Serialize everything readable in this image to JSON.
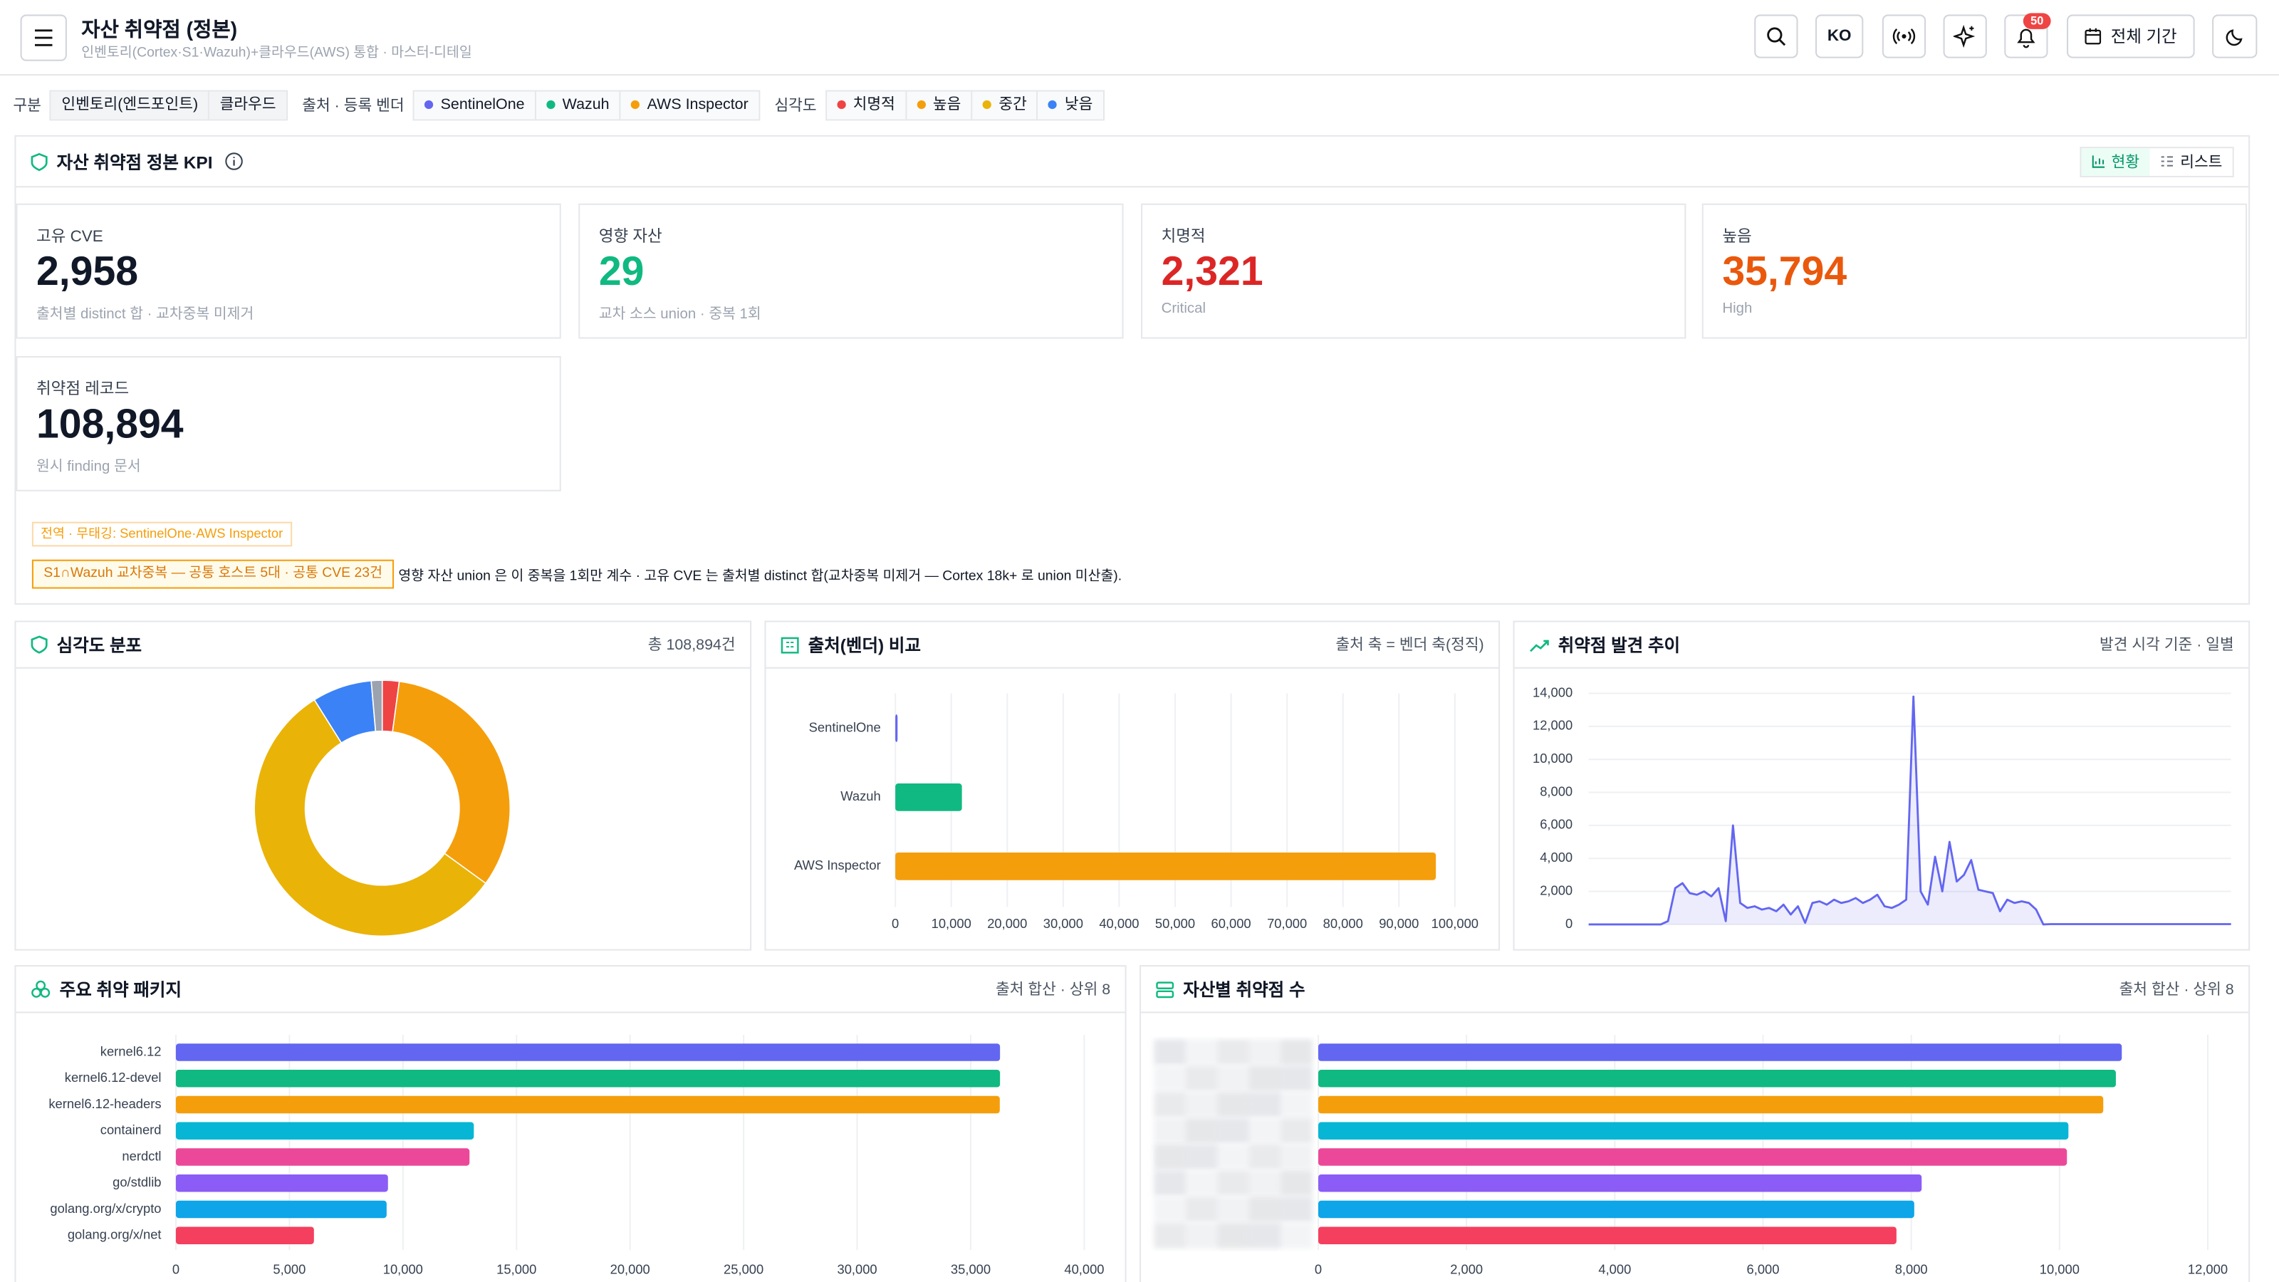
{
  "header": {
    "title": "자산 취약점 (정본)",
    "subtitle": "인벤토리(Cortex·S1·Wazuh)+클라우드(AWS) 통합 · 마스터-디테일",
    "lang": "KO",
    "badge": "50",
    "period": "전체 기간"
  },
  "filters": {
    "group_label": "구분",
    "groups": [
      "인벤토리(엔드포인트)",
      "클라우드"
    ],
    "vendor_label": "출처 · 등록 벤더",
    "vendors": [
      {
        "name": "SentinelOne",
        "color": "#6366f1"
      },
      {
        "name": "Wazuh",
        "color": "#10b981"
      },
      {
        "name": "AWS Inspector",
        "color": "#f59e0b"
      }
    ],
    "severity_label": "심각도",
    "severities": [
      {
        "name": "치명적",
        "color": "#ef4444"
      },
      {
        "name": "높음",
        "color": "#f59e0b"
      },
      {
        "name": "중간",
        "color": "#eab308"
      },
      {
        "name": "낮음",
        "color": "#3b82f6"
      }
    ]
  },
  "kpi": {
    "title": "자산 취약점 정본 KPI",
    "tabs": [
      "현황",
      "리스트"
    ],
    "cards": [
      {
        "label": "고유 CVE",
        "value": "2,958",
        "note": "출처별 distinct 합 · 교차중복 미제거",
        "color": "#111827"
      },
      {
        "label": "영향 자산",
        "value": "29",
        "note": "교차 소스 union · 중복 1회",
        "color": "#10b981"
      },
      {
        "label": "치명적",
        "value": "2,321",
        "note": "Critical",
        "color": "#dc2626"
      },
      {
        "label": "높음",
        "value": "35,794",
        "note": "High",
        "color": "#ea580c"
      },
      {
        "label": "취약점 레코드",
        "value": "108,894",
        "note": "원시 finding 문서",
        "color": "#111827"
      }
    ],
    "tag": "전역 · 무태깅: SentinelOne·AWS Inspector",
    "overlap": "S1∩Wazuh 교차중복 — 공통 호스트 5대 · 공통 CVE 23건",
    "note": "영향 자산 union 은 이 중복을 1회만 계수 · 고유 CVE 는 출처별 distinct 합(교차중복 미제거 — Cortex 18k+ 로 union 미산출)."
  },
  "severity_chart": {
    "type": "donut",
    "title": "심각도 분포",
    "summary": "총 108,894건",
    "values": [
      2321,
      35794,
      61079,
      8200,
      1500
    ],
    "colors": [
      "#ef4444",
      "#f59e0b",
      "#eab308",
      "#3b82f6",
      "#9ca3af"
    ]
  },
  "vendor_chart": {
    "type": "hbar",
    "title": "출처(벤더) 비교",
    "summary": "출처 축 = 벤더 축(정직)",
    "categories": [
      "SentinelOne",
      "Wazuh",
      "AWS Inspector"
    ],
    "values": [
      400,
      11900,
      96600
    ],
    "colors": [
      "#6366f1",
      "#10b981",
      "#f59e0b"
    ],
    "xlim": [
      0,
      100000
    ],
    "xticks": [
      0,
      {
        "value": 10000,
        "label": "10,000"
      },
      {
        "value": 20000,
        "label": "20,000"
      },
      {
        "value": 30000,
        "label": "30,000"
      },
      {
        "value": 40000,
        "label": "40,000"
      },
      {
        "value": 50000,
        "label": "50,000"
      },
      {
        "value": 60000,
        "label": "60,000"
      },
      {
        "value": 70000,
        "label": "70,000"
      },
      {
        "value": 80000,
        "label": "80,000"
      },
      {
        "value": 90000,
        "label": "90,000"
      },
      {
        "value": 100000,
        "label": "100,000"
      }
    ]
  },
  "trend_chart": {
    "type": "line",
    "title": "취약점 발견 추이",
    "summary": "발견 시각 기준 · 일별",
    "color": "#6366f1",
    "values": [
      0,
      0,
      0,
      0,
      0,
      0,
      0,
      0,
      0,
      0,
      0,
      200,
      2200,
      2500,
      1900,
      1800,
      2000,
      1700,
      2200,
      200,
      6000,
      1300,
      1000,
      1100,
      900,
      1000,
      800,
      1200,
      600,
      1100,
      100,
      1300,
      1400,
      1200,
      1500,
      1300,
      1400,
      1600,
      1300,
      1500,
      1800,
      1100,
      1000,
      1200,
      1500,
      13800,
      2000,
      1200,
      4100,
      2000,
      5000,
      2600,
      3000,
      3900,
      2100,
      2000,
      1900,
      800,
      1500,
      1300,
      1400,
      1300,
      900,
      0,
      20,
      20,
      20,
      20,
      20,
      20,
      20,
      20,
      20,
      20,
      20,
      20,
      20,
      20,
      20,
      20,
      20,
      20,
      20,
      20,
      20,
      20,
      20,
      20,
      20,
      20
    ],
    "ylim": [
      0,
      14000
    ],
    "yticks": [
      0,
      {
        "value": 2000,
        "label": "2,000"
      },
      {
        "value": 4000,
        "label": "4,000"
      },
      {
        "value": 6000,
        "label": "6,000"
      },
      {
        "value": 8000,
        "label": "8,000"
      },
      {
        "value": 10000,
        "label": "10,000"
      },
      {
        "value": 12000,
        "label": "12,000"
      },
      {
        "value": 14000,
        "label": "14,000"
      }
    ]
  },
  "package_chart": {
    "type": "hbar",
    "title": "주요 취약 패키지",
    "summary": "출처 합산 · 상위 8",
    "categories": [
      "kernel6.12",
      "kernel6.12-devel",
      "kernel6.12-headers",
      "containerd",
      "nerdctl",
      "go/stdlib",
      "golang.org/x/crypto",
      "golang.org/x/net"
    ],
    "values": [
      36290,
      36290,
      36280,
      13120,
      12930,
      9340,
      9280,
      6080
    ],
    "colors": [
      "#6366f1",
      "#10b981",
      "#f59e0b",
      "#06b6d4",
      "#ec4899",
      "#8b5cf6",
      "#0ea5e9",
      "#f43f5e"
    ],
    "xlim": [
      0,
      40000
    ],
    "xticks": [
      0,
      {
        "value": 5000,
        "label": "5,000"
      },
      {
        "value": 10000,
        "label": "10,000"
      },
      {
        "value": 15000,
        "label": "15,000"
      },
      {
        "value": 20000,
        "label": "20,000"
      },
      {
        "value": 25000,
        "label": "25,000"
      },
      {
        "value": 30000,
        "label": "30,000"
      },
      {
        "value": 35000,
        "label": "35,000"
      },
      {
        "value": 40000,
        "label": "40,000"
      }
    ]
  },
  "asset_chart": {
    "type": "hbar",
    "title": "자산별 취약점 수",
    "summary": "출처 합산 · 상위 8",
    "categories": [
      null,
      null,
      null,
      null,
      null,
      null,
      null,
      null
    ],
    "values": [
      10840,
      10760,
      10590,
      10120,
      10100,
      8140,
      8040,
      7800
    ],
    "colors": [
      "#6366f1",
      "#10b981",
      "#f59e0b",
      "#06b6d4",
      "#ec4899",
      "#8b5cf6",
      "#0ea5e9",
      "#f43f5e"
    ],
    "xlim": [
      0,
      12000
    ],
    "xticks": [
      0,
      {
        "value": 2000,
        "label": "2,000"
      },
      {
        "value": 4000,
        "label": "4,000"
      },
      {
        "value": 6000,
        "label": "6,000"
      },
      {
        "value": 8000,
        "label": "8,000"
      },
      {
        "value": 10000,
        "label": "10,000"
      },
      {
        "value": 12000,
        "label": "12,000"
      }
    ]
  }
}
